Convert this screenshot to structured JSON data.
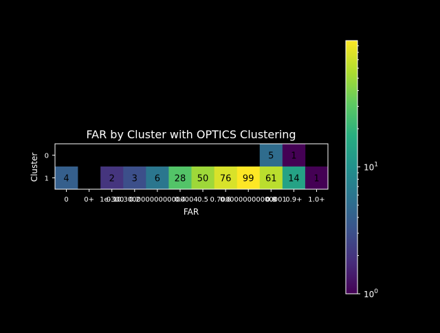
{
  "chart_data": {
    "type": "heatmap",
    "title": "FAR by Cluster with OPTICS Clustering",
    "xlabel": "FAR",
    "ylabel": "Cluster",
    "x_tick_labels": [
      "0",
      "0+",
      "0.1",
      "1e-300",
      "0.2",
      "0.30000000000000004",
      "0.4",
      "0.5",
      "0.6",
      "0.7000000000000001",
      "0.8",
      "0.9",
      "0.9+",
      "1.0+"
    ],
    "x_categories": [
      "0",
      "0+",
      "0.1",
      "0.2",
      "0.30000000000000004",
      "0.4",
      "0.5",
      "0.6",
      "0.7000000000000001",
      "0.8",
      "0.9+",
      "1.0+"
    ],
    "y_categories": [
      "0",
      "1"
    ],
    "values": [
      [
        null,
        null,
        null,
        null,
        null,
        null,
        null,
        null,
        null,
        5,
        1,
        null
      ],
      [
        4,
        null,
        2,
        3,
        6,
        28,
        50,
        76,
        99,
        61,
        14,
        1
      ]
    ],
    "colorbar": {
      "scale": "log",
      "range": [
        1,
        99
      ],
      "colormap": "viridis",
      "tick_labels": [
        "10^0",
        "10^1"
      ]
    }
  }
}
